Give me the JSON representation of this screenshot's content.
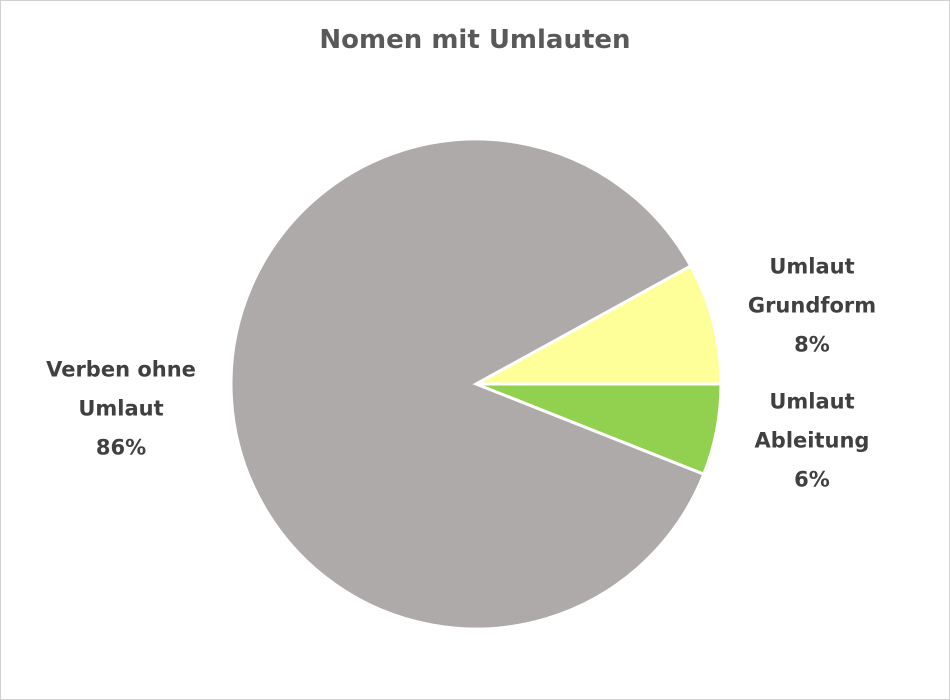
{
  "chart_data": {
    "type": "pie",
    "title": "Nomen mit Umlauten",
    "categories": [
      "Umlaut Grundform",
      "Umlaut Ableitung",
      "Verben ohne Umlaut"
    ],
    "values": [
      8,
      6,
      86
    ],
    "value_labels": [
      "8%",
      "6%",
      "86%"
    ],
    "colors": [
      "#ffff99",
      "#92d050",
      "#aeaaa9"
    ]
  }
}
